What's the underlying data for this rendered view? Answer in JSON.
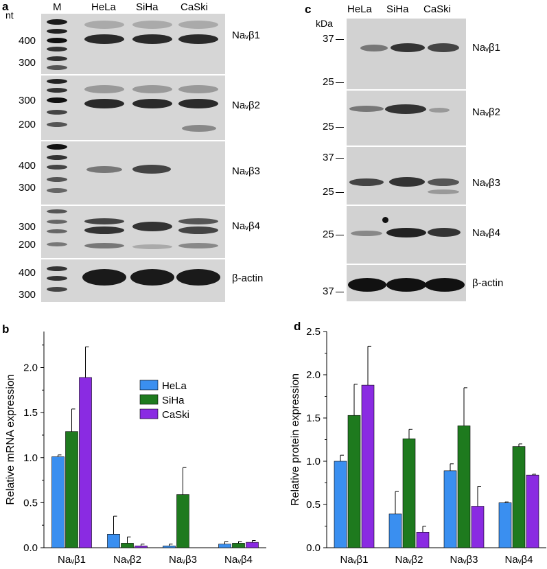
{
  "panels": {
    "a": "a",
    "b": "b",
    "c": "c",
    "d": "d"
  },
  "gel_a": {
    "unit": "nt",
    "lanes": [
      "M",
      "HeLa",
      "SiHa",
      "CaSki"
    ],
    "rows": [
      {
        "label": "Naᵥβ1",
        "ladder": [
          "400",
          "300"
        ]
      },
      {
        "label": "Naᵥβ2",
        "ladder": [
          "300",
          "200"
        ]
      },
      {
        "label": "Naᵥβ3",
        "ladder": [
          "400",
          "300"
        ]
      },
      {
        "label": "Naᵥβ4",
        "ladder": [
          "300",
          "200"
        ]
      },
      {
        "label": "β-actin",
        "ladder": [
          "400",
          "300"
        ]
      }
    ]
  },
  "blot_c": {
    "unit": "kDa",
    "lanes": [
      "HeLa",
      "SiHa",
      "CaSki"
    ],
    "rows": [
      {
        "label": "Naᵥβ1",
        "markers": [
          "37",
          "25"
        ]
      },
      {
        "label": "Naᵥβ2",
        "markers": [
          "25"
        ]
      },
      {
        "label": "Naᵥβ3",
        "markers": [
          "37",
          "25"
        ]
      },
      {
        "label": "Naᵥβ4",
        "markers": [
          "25"
        ]
      },
      {
        "label": "β-actin",
        "markers": [
          "37"
        ]
      }
    ]
  },
  "colors": {
    "HeLa": "#3a8ff0",
    "SiHa": "#1e7a1e",
    "CaSki": "#8a2be2"
  },
  "chart_data": [
    {
      "type": "bar",
      "panel": "b",
      "categories": [
        "Naᵥβ1",
        "Naᵥβ2",
        "Naᵥβ3",
        "Naᵥβ4"
      ],
      "ylabel": "Relative mRNA expression",
      "ylim": [
        0,
        2.4
      ],
      "yticks": [
        "0.0",
        "0.5",
        "1.0",
        "1.5",
        "2.0"
      ],
      "legend": "upper-middle",
      "series": [
        {
          "name": "HeLa",
          "values": [
            1.01,
            0.15,
            0.02,
            0.04
          ],
          "errors": [
            0.02,
            0.2,
            0.02,
            0.03
          ]
        },
        {
          "name": "SiHa",
          "values": [
            1.29,
            0.05,
            0.59,
            0.05
          ],
          "errors": [
            0.25,
            0.07,
            0.3,
            0.02
          ]
        },
        {
          "name": "CaSki",
          "values": [
            1.89,
            0.02,
            0.0,
            0.06
          ],
          "errors": [
            0.34,
            0.02,
            0.0,
            0.02
          ]
        }
      ]
    },
    {
      "type": "bar",
      "panel": "d",
      "categories": [
        "Naᵥβ1",
        "Naᵥβ2",
        "Naᵥβ3",
        "Naᵥβ4"
      ],
      "ylabel": "Relative protein expression",
      "ylim": [
        0,
        2.5
      ],
      "yticks": [
        "0.0",
        "0.5",
        "1.0",
        "1.5",
        "2.0",
        "2.5"
      ],
      "series": [
        {
          "name": "HeLa",
          "values": [
            1.0,
            0.39,
            0.89,
            0.52
          ],
          "errors": [
            0.07,
            0.26,
            0.08,
            0.01
          ]
        },
        {
          "name": "SiHa",
          "values": [
            1.53,
            1.26,
            1.41,
            1.17
          ],
          "errors": [
            0.36,
            0.11,
            0.44,
            0.03
          ]
        },
        {
          "name": "CaSki",
          "values": [
            1.88,
            0.18,
            0.48,
            0.84
          ],
          "errors": [
            0.45,
            0.07,
            0.23,
            0.01
          ]
        }
      ]
    }
  ]
}
